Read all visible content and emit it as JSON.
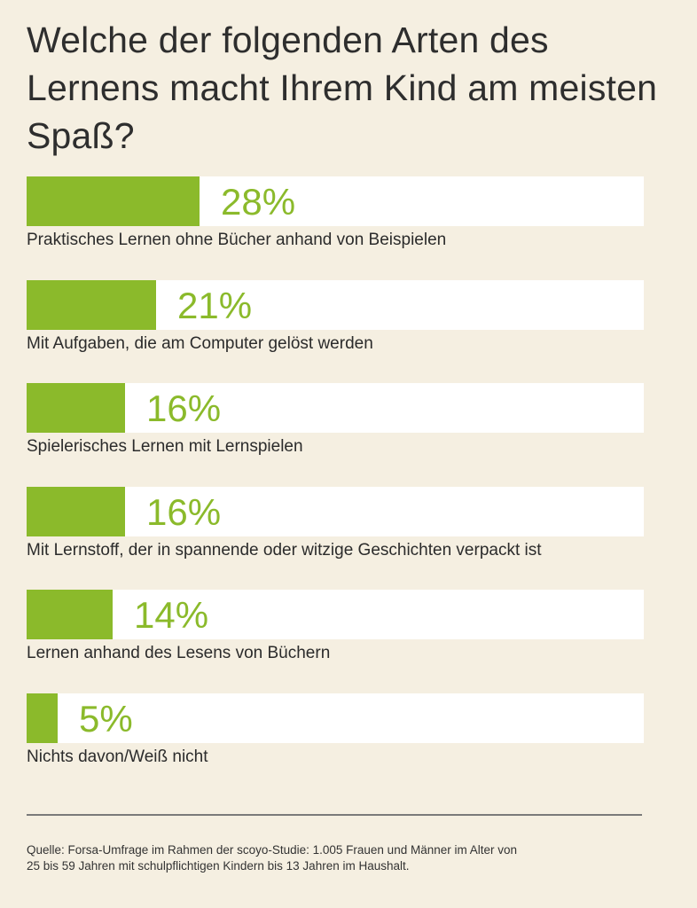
{
  "chart_data": {
    "type": "bar",
    "orientation": "horizontal",
    "title": "Welche der folgenden Arten des Lernens macht Ihrem Kind am meisten Spaß?",
    "categories": [
      "Praktisches Lernen ohne Bücher anhand von Beispielen",
      "Mit Aufgaben, die am Computer gelöst werden",
      "Spielerisches Lernen mit Lernspielen",
      "Mit Lernstoff, der in spannende oder witzige Geschichten verpackt ist",
      "Lernen anhand des Lesens von Büchern",
      "Nichts davon/Weiß nicht"
    ],
    "values": [
      28,
      21,
      16,
      16,
      14,
      5
    ],
    "value_labels": [
      "28%",
      "21%",
      "16%",
      "16%",
      "14%",
      "5%"
    ],
    "unit": "%",
    "xlim": [
      0,
      100
    ],
    "grid": false,
    "legend": "none",
    "colors": {
      "bar": "#8bba2b",
      "track": "#ffffff",
      "value_text": "#8bba2b",
      "background": "#f5efe1"
    }
  },
  "source_note": "Quelle: Forsa-Umfrage im Rahmen der scoyo-Studie: 1.005 Frauen und Männer im Alter von 25 bis 59 Jahren mit schulpflichtigen Kindern bis 13 Jahren im Haushalt."
}
